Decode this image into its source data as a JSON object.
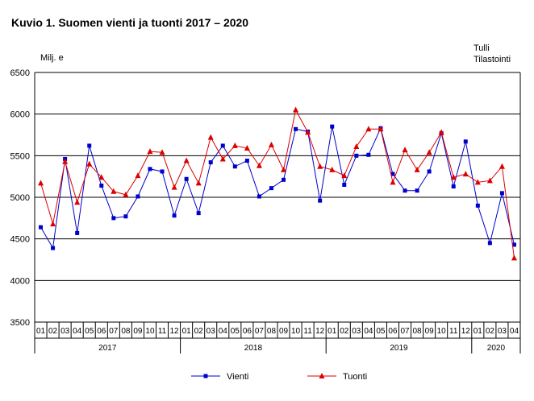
{
  "title": "Kuvio 1. Suomen vienti ja tuonti 2017 – 2020",
  "unit": "Milj. e",
  "source_lines": [
    "Tulli",
    "Tilastointi"
  ],
  "chart_data": {
    "type": "line",
    "title": "Kuvio 1. Suomen vienti ja tuonti 2017 – 2020",
    "ylabel": "Milj. e",
    "ylim": [
      3500,
      6500
    ],
    "yticks": [
      3500,
      4000,
      4500,
      5000,
      5500,
      6000,
      6500
    ],
    "grid": true,
    "legend": "bottom",
    "months": [
      "01",
      "02",
      "03",
      "04",
      "05",
      "06",
      "07",
      "08",
      "09",
      "10",
      "11",
      "12",
      "01",
      "02",
      "03",
      "04",
      "05",
      "06",
      "07",
      "08",
      "09",
      "10",
      "11",
      "12",
      "01",
      "02",
      "03",
      "04",
      "05",
      "06",
      "07",
      "08",
      "09",
      "10",
      "11",
      "12",
      "01",
      "02",
      "03",
      "04"
    ],
    "years": [
      {
        "label": "2017",
        "count": 12
      },
      {
        "label": "2018",
        "count": 12
      },
      {
        "label": "2019",
        "count": 12
      },
      {
        "label": "2020",
        "count": 4
      }
    ],
    "series": [
      {
        "name": "Vienti",
        "color": "#0000cc",
        "marker": "square",
        "values": [
          4640,
          4390,
          5460,
          4570,
          5620,
          5140,
          4750,
          4770,
          5010,
          5340,
          5310,
          4780,
          5220,
          4810,
          5420,
          5620,
          5370,
          5440,
          5010,
          5110,
          5210,
          5820,
          5790,
          4960,
          5850,
          5150,
          5500,
          5510,
          5830,
          5280,
          5080,
          5080,
          5310,
          5770,
          5130,
          5670,
          4900,
          4450,
          5050,
          4430
        ]
      },
      {
        "name": "Tuonti",
        "color": "#dd0000",
        "marker": "triangle",
        "values": [
          5170,
          4680,
          5430,
          4940,
          5400,
          5240,
          5070,
          5030,
          5260,
          5550,
          5540,
          5120,
          5440,
          5170,
          5720,
          5460,
          5620,
          5590,
          5380,
          5630,
          5330,
          6050,
          5780,
          5370,
          5330,
          5260,
          5610,
          5820,
          5820,
          5180,
          5570,
          5330,
          5540,
          5780,
          5240,
          5280,
          5180,
          5200,
          5370,
          4270
        ]
      }
    ]
  }
}
